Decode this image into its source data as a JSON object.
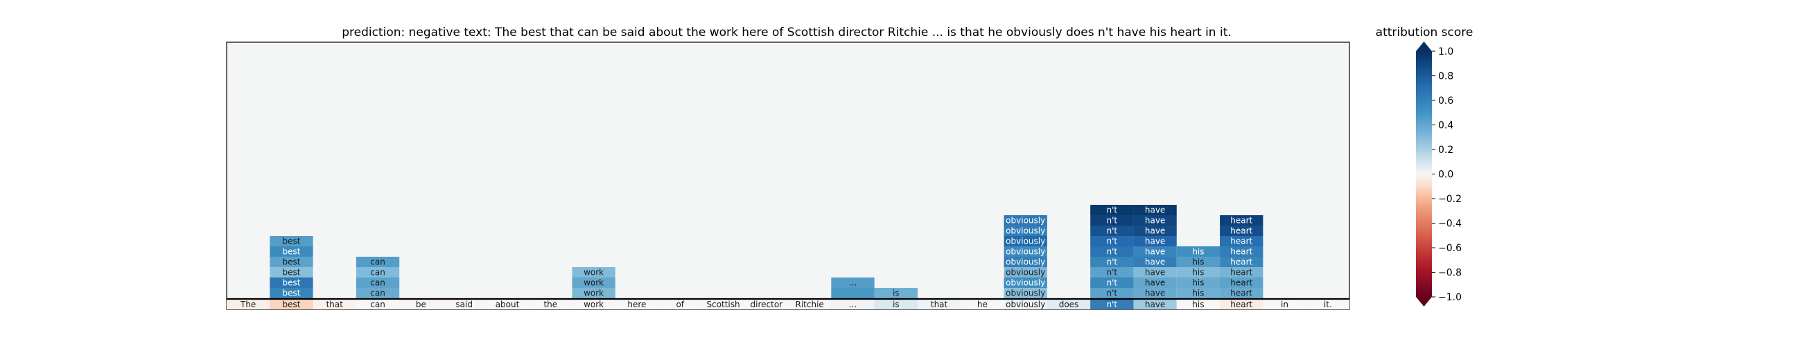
{
  "chart_data": {
    "type": "heatmap",
    "title": "prediction:  negative     text:  The best that can be said about the work here of Scottish director Ritchie ... is that he obviously does n't have his heart in it.",
    "colorbar": {
      "label": "attribution score",
      "range": [
        -1.0,
        1.0
      ],
      "ticks": [
        1.0,
        0.8,
        0.6,
        0.4,
        0.2,
        0.0,
        -0.2,
        -0.4,
        -0.6,
        -0.8,
        -1.0
      ],
      "tick_labels": [
        "1.0",
        "0.8",
        "0.6",
        "0.4",
        "0.2",
        "0.0",
        "−0.2",
        "−0.4",
        "−0.6",
        "−0.8",
        "−1.0"
      ],
      "colormap": "RdBu",
      "extend": "both"
    },
    "tokens": [
      "The",
      "best",
      "that",
      "can",
      "be",
      "said",
      "about",
      "the",
      "work",
      "here",
      "of",
      "Scottish",
      "director",
      "Ritchie",
      "...",
      "is",
      "that",
      "he",
      "obviously",
      "does",
      "n't",
      "have",
      "his",
      "heart",
      "in",
      "it."
    ],
    "base_scores": [
      -0.03,
      -0.12,
      -0.02,
      0.0,
      -0.01,
      -0.01,
      0.0,
      0.0,
      0.0,
      0.0,
      0.0,
      0.0,
      0.0,
      0.0,
      0.02,
      0.08,
      0.02,
      0.0,
      0.03,
      0.06,
      0.62,
      0.22,
      0.0,
      -0.04,
      0.0,
      0.0
    ],
    "stacks": [
      {
        "token_index": 1,
        "label": "best",
        "scores": [
          0.58,
          0.66,
          0.28,
          0.42,
          0.55,
          0.45
        ]
      },
      {
        "token_index": 3,
        "label": "can",
        "scores": [
          0.38,
          0.42,
          0.3,
          0.45
        ]
      },
      {
        "token_index": 8,
        "label": "work",
        "scores": [
          0.32,
          0.4,
          0.3
        ]
      },
      {
        "token_index": 14,
        "label": "...",
        "scores": [
          0.48,
          0.45
        ]
      },
      {
        "token_index": 15,
        "label": "is",
        "scores": [
          0.36
        ]
      },
      {
        "token_index": 18,
        "label": "obviously",
        "scores": [
          0.28,
          0.52,
          0.32,
          0.62,
          0.55,
          0.74,
          0.62,
          0.65
        ]
      },
      {
        "token_index": 20,
        "label": "n't",
        "scores": [
          0.42,
          0.56,
          0.42,
          0.58,
          0.68,
          0.72,
          0.84,
          0.92,
          0.96
        ]
      },
      {
        "token_index": 21,
        "label": "have",
        "scores": [
          0.38,
          0.4,
          0.3,
          0.62,
          0.58,
          0.75,
          0.87,
          0.9,
          0.96
        ]
      },
      {
        "token_index": 22,
        "label": "his",
        "scores": [
          0.36,
          0.38,
          0.3,
          0.45,
          0.52
        ]
      },
      {
        "token_index": 23,
        "label": "heart",
        "scores": [
          0.38,
          0.42,
          0.34,
          0.58,
          0.62,
          0.7,
          0.86,
          0.92
        ]
      }
    ],
    "empty_score": -0.005,
    "text_color_threshold": 0.5,
    "grid": false
  }
}
